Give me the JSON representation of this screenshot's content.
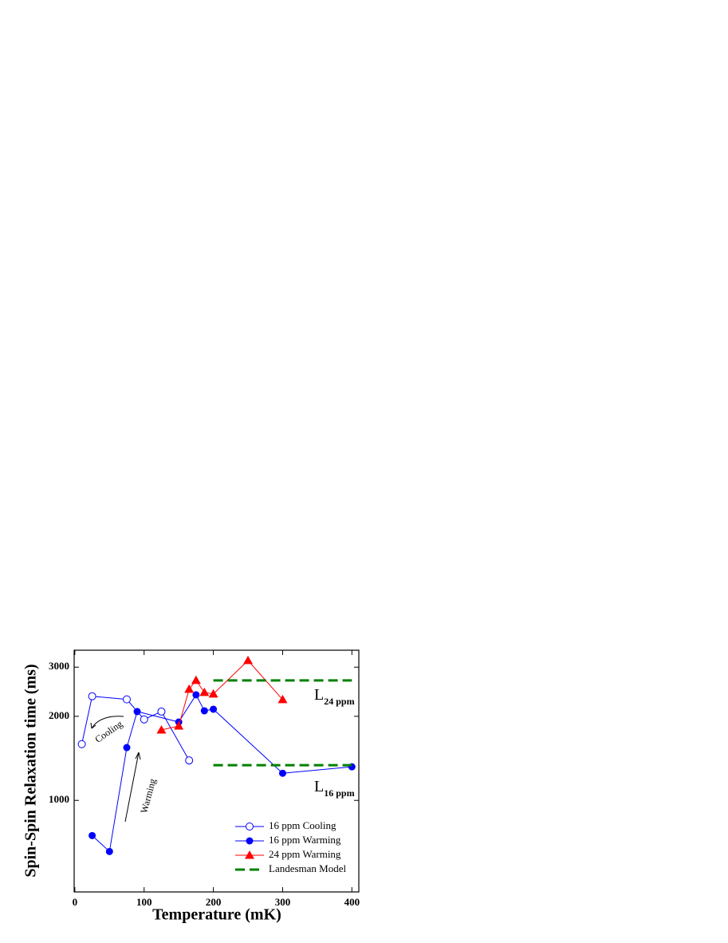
{
  "chart_data": {
    "type": "line",
    "xlabel": "Temperature (mK)",
    "ylabel": "Spin-Spin Relaxation time (ms)",
    "xlim": [
      -1,
      410
    ],
    "xticks": [
      0,
      100,
      200,
      300,
      400
    ],
    "ylim": [
      470,
      3450
    ],
    "yticks": [
      1000,
      2000,
      3000
    ],
    "log_y": true,
    "legend": "lower right",
    "series": [
      {
        "name": "16 ppm Cooling",
        "color": "#0000ff",
        "marker": "open-circle",
        "x": [
          10,
          25,
          75,
          100,
          125,
          165
        ],
        "values": [
          1590,
          2360,
          2300,
          1950,
          2080,
          1390
        ]
      },
      {
        "name": "16 ppm Warming",
        "color": "#0000ff",
        "marker": "circle",
        "x": [
          25,
          50,
          75,
          90,
          150,
          175,
          187,
          200,
          300,
          400
        ],
        "values": [
          748,
          656,
          1546,
          2080,
          1908,
          2388,
          2093,
          2121,
          1251,
          1319
        ]
      },
      {
        "name": "24 ppm Warming",
        "color": "#ff0000",
        "marker": "triangle",
        "x": [
          125,
          150,
          165,
          175,
          187,
          200,
          250,
          300
        ],
        "values": [
          1787,
          1847,
          2502,
          2692,
          2437,
          2405,
          3170,
          2296
        ]
      },
      {
        "name": "Landesman Model",
        "color": "#008000",
        "marker": "dash",
        "x": [
          200,
          400
        ],
        "values": [
          2690,
          2690
        ]
      }
    ],
    "model_lines": [
      {
        "x": [
          200,
          400
        ],
        "values": [
          1337,
          1337
        ]
      }
    ],
    "annotations": {
      "cooling": "Cooling",
      "warming": "Warming",
      "l24": {
        "main": "L",
        "sub": "24 ppm"
      },
      "l16": {
        "main": "L",
        "sub": "16 ppm"
      }
    }
  }
}
